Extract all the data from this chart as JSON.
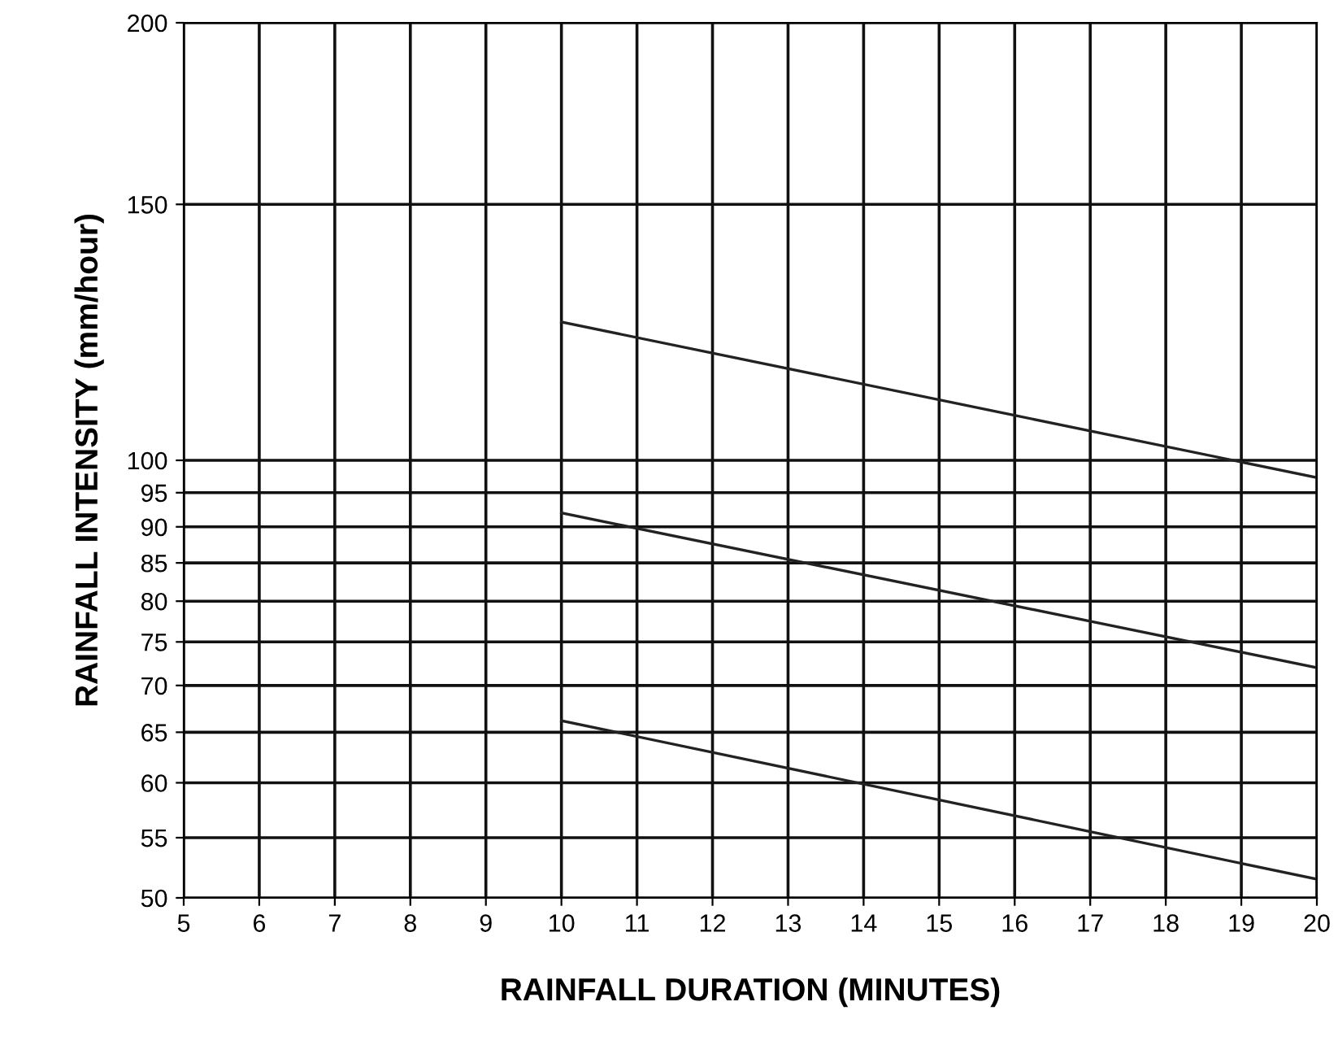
{
  "chart_data": {
    "type": "line",
    "xlabel": "RAINFALL DURATION (MINUTES)",
    "ylabel": "RAINFALL INTENSITY (mm/hour)",
    "x": [
      10,
      20
    ],
    "series": [
      {
        "color": "#222222",
        "values": [
          124.5,
          97.3
        ]
      },
      {
        "color": "#222222",
        "values": [
          92,
          72
        ]
      },
      {
        "color": "#222222",
        "values": [
          66.2,
          51.5
        ]
      }
    ],
    "log": "y",
    "xlim": [
      5,
      20
    ],
    "xticks": [
      5,
      6,
      7,
      8,
      9,
      10,
      11,
      12,
      13,
      14,
      15,
      16,
      17,
      18,
      19,
      20
    ],
    "ylim": [
      50,
      200
    ],
    "yticks": [
      50,
      55,
      60,
      65,
      70,
      75,
      80,
      85,
      90,
      95,
      100,
      150,
      200
    ],
    "grid": true,
    "marker": "none",
    "line_style": "solid"
  }
}
